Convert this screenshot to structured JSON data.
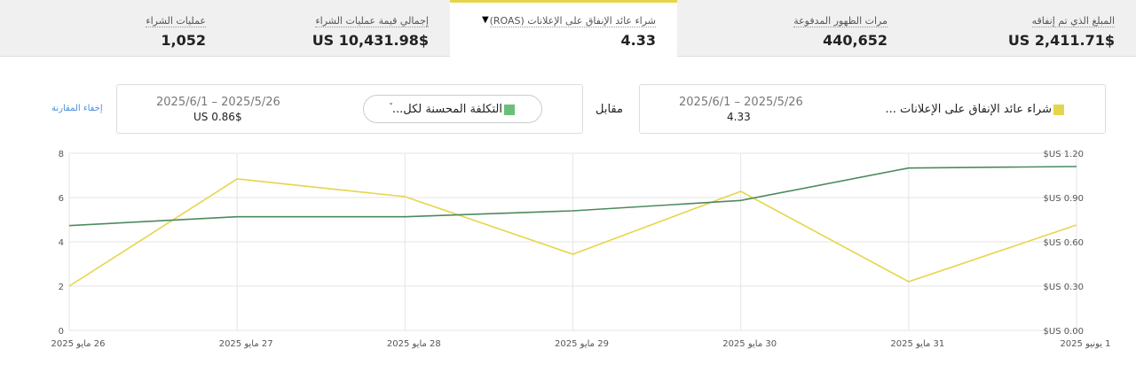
{
  "metrics": [
    {
      "label": "المبلغ الذي تم إنفاقه",
      "value": "$US 2,411.71"
    },
    {
      "label": "مرات الظهور المدفوعة",
      "value": "440,652"
    },
    {
      "label": "شراء عائد الإنفاق على الإعلانات (ROAS)",
      "value": "4.33"
    },
    {
      "label": "إجمالي قيمة عمليات الشراء",
      "value": "$US 10,431.98"
    },
    {
      "label": "عمليات الشراء",
      "value": "1,052"
    }
  ],
  "comparison": {
    "primary": {
      "metric": "شراء عائد الإنفاق على الإعلانات ...",
      "dates": "2025/5/26 – 2025/6/1",
      "value": "4.33"
    },
    "versus": "مقابل",
    "secondary": {
      "metric": "التكلفة المحسنة لكل...",
      "dates": "2025/5/26 – 2025/6/1",
      "value": "$US 0.86"
    },
    "hide_link": "إخفاء المقارنة"
  },
  "chart_data": {
    "type": "line",
    "categories": [
      "26 مايو 2025",
      "27 مايو 2025",
      "28 مايو 2025",
      "29 مايو 2025",
      "30 مايو 2025",
      "31 مايو 2025",
      "1 يونيو 2025"
    ],
    "series": [
      {
        "color": "#e6d54a",
        "values": [
          2.0,
          6.84,
          6.04,
          3.44,
          6.28,
          2.2,
          4.76
        ]
      },
      {
        "color": "#4c8a5c",
        "axis": "y2",
        "values": [
          0.71,
          0.77,
          0.77,
          0.81,
          0.88,
          1.1,
          1.11
        ]
      }
    ],
    "ylim": [
      0,
      8
    ],
    "yticks": [
      0,
      2,
      4,
      6,
      8
    ],
    "y2lim": [
      0,
      1.2
    ],
    "y2ticks": [
      {
        "value": 0,
        "label": "$US 0.00"
      },
      {
        "value": 0.3,
        "label": "$US 0.30"
      },
      {
        "value": 0.6,
        "label": "$US 0.60"
      },
      {
        "value": 0.9,
        "label": "$US 0.90"
      },
      {
        "value": 1.2,
        "label": "$US 1.20"
      }
    ],
    "grid": true
  }
}
